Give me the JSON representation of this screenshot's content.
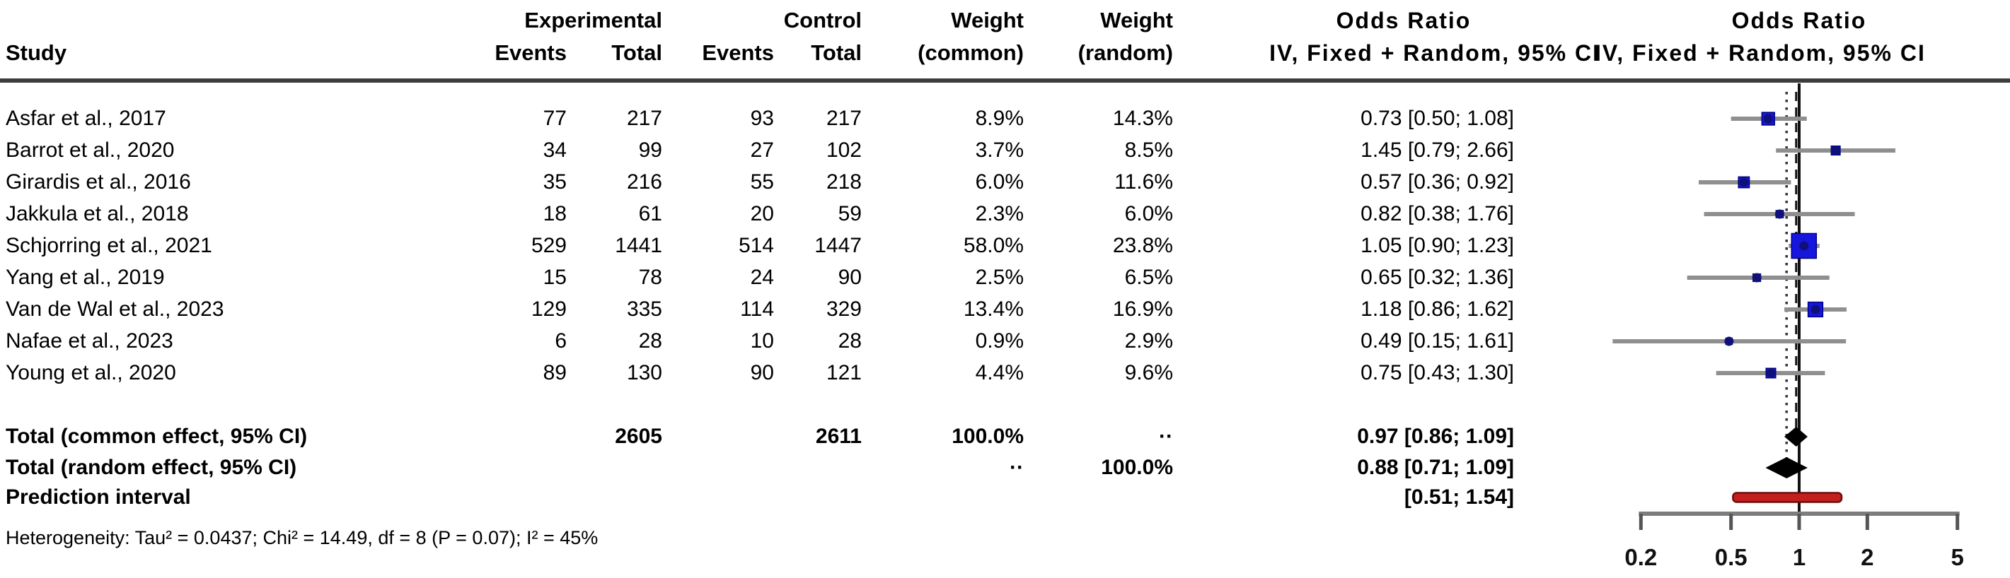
{
  "header": {
    "study": "Study",
    "experimental": "Experimental",
    "control": "Control",
    "events": "Events",
    "total": "Total",
    "weight": "Weight",
    "weight_common_sub": "(common)",
    "weight_random_sub": "(random)",
    "or_text_title": "Odds Ratio",
    "or_text_sub": "IV, Fixed + Random, 95% CI",
    "or_plot_title": "Odds Ratio",
    "or_plot_sub": "IV, Fixed + Random, 95% CI"
  },
  "chart_data": {
    "type": "forest",
    "x_scale": "log",
    "x_ticks": [
      0.2,
      0.5,
      1,
      2,
      5
    ],
    "x_tick_labels": [
      "0.2",
      "0.5",
      "1",
      "2",
      "5"
    ],
    "ref_line": 1,
    "common_ref_line": 0.97,
    "random_ref_line": 0.88,
    "studies": [
      {
        "study": "Asfar et al., 2017",
        "exp_events": "77",
        "exp_total": "217",
        "ctl_events": "93",
        "ctl_total": "217",
        "weight_common": "8.9%",
        "weight_random": "14.3%",
        "or": 0.73,
        "ci_low": 0.5,
        "ci_high": 1.08,
        "or_label": "0.73 [0.50; 1.08]"
      },
      {
        "study": "Barrot et al., 2020",
        "exp_events": "34",
        "exp_total": "99",
        "ctl_events": "27",
        "ctl_total": "102",
        "weight_common": "3.7%",
        "weight_random": "8.5%",
        "or": 1.45,
        "ci_low": 0.79,
        "ci_high": 2.66,
        "or_label": "1.45 [0.79; 2.66]"
      },
      {
        "study": "Girardis et al., 2016",
        "exp_events": "35",
        "exp_total": "216",
        "ctl_events": "55",
        "ctl_total": "218",
        "weight_common": "6.0%",
        "weight_random": "11.6%",
        "or": 0.57,
        "ci_low": 0.36,
        "ci_high": 0.92,
        "or_label": "0.57 [0.36; 0.92]"
      },
      {
        "study": "Jakkula et al., 2018",
        "exp_events": "18",
        "exp_total": "61",
        "ctl_events": "20",
        "ctl_total": "59",
        "weight_common": "2.3%",
        "weight_random": "6.0%",
        "or": 0.82,
        "ci_low": 0.38,
        "ci_high": 1.76,
        "or_label": "0.82 [0.38; 1.76]"
      },
      {
        "study": "Schjorring et al., 2021",
        "exp_events": "529",
        "exp_total": "1441",
        "ctl_events": "514",
        "ctl_total": "1447",
        "weight_common": "58.0%",
        "weight_random": "23.8%",
        "or": 1.05,
        "ci_low": 0.9,
        "ci_high": 1.23,
        "or_label": "1.05 [0.90; 1.23]"
      },
      {
        "study": "Yang et al., 2019",
        "exp_events": "15",
        "exp_total": "78",
        "ctl_events": "24",
        "ctl_total": "90",
        "weight_common": "2.5%",
        "weight_random": "6.5%",
        "or": 0.65,
        "ci_low": 0.32,
        "ci_high": 1.36,
        "or_label": "0.65 [0.32; 1.36]"
      },
      {
        "study": "Van de Wal et al., 2023",
        "exp_events": "129",
        "exp_total": "335",
        "ctl_events": "114",
        "ctl_total": "329",
        "weight_common": "13.4%",
        "weight_random": "16.9%",
        "or": 1.18,
        "ci_low": 0.86,
        "ci_high": 1.62,
        "or_label": "1.18 [0.86; 1.62]"
      },
      {
        "study": "Nafae et al., 2023",
        "exp_events": "6",
        "exp_total": "28",
        "ctl_events": "10",
        "ctl_total": "28",
        "weight_common": "0.9%",
        "weight_random": "2.9%",
        "or": 0.49,
        "ci_low": 0.15,
        "ci_high": 1.61,
        "or_label": "0.49 [0.15; 1.61]"
      },
      {
        "study": "Young et al., 2020",
        "exp_events": "89",
        "exp_total": "130",
        "ctl_events": "90",
        "ctl_total": "121",
        "weight_common": "4.4%",
        "weight_random": "9.6%",
        "or": 0.75,
        "ci_low": 0.43,
        "ci_high": 1.3,
        "or_label": "0.75 [0.43; 1.30]"
      }
    ],
    "totals": {
      "common": {
        "label": "Total (common effect, 95% CI)",
        "exp_total": "2605",
        "ctl_total": "2611",
        "weight_common": "100.0%",
        "weight_random": "··",
        "or": 0.97,
        "ci_low": 0.86,
        "ci_high": 1.09,
        "or_label": "0.97 [0.86; 1.09]"
      },
      "random": {
        "label": "Total (random effect, 95% CI)",
        "weight_common": "··",
        "weight_random": "100.0%",
        "or": 0.88,
        "ci_low": 0.71,
        "ci_high": 1.09,
        "or_label": "0.88 [0.71; 1.09]"
      },
      "prediction": {
        "label": "Prediction interval",
        "ci_low": 0.51,
        "ci_high": 1.54,
        "or_label": "[0.51; 1.54]"
      }
    },
    "heterogeneity": "Heterogeneity: Tau² = 0.0437; Chi² = 14.49, df = 8 (P = 0.07); I² = 45%"
  },
  "colors": {
    "square": "#1616dd",
    "square_border": "#000080",
    "point_dot": "#10107a",
    "ci_line": "#8f8f8f",
    "diamond": "#000000",
    "prediction_fill": "#c41f1f",
    "prediction_border": "#6b0d0d",
    "axis": "#7d7d7d",
    "separator": "#3c3c3c",
    "ref_solid": "#111111",
    "ref_dashed": "#111111",
    "ref_dotted": "#333333"
  }
}
